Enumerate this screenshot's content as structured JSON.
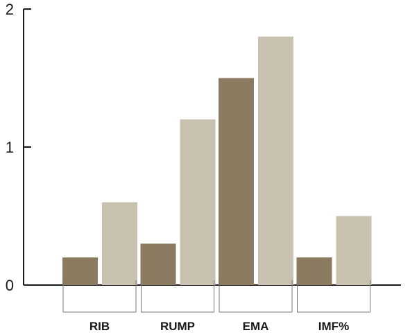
{
  "chart_data": {
    "type": "bar",
    "categories": [
      "RIB",
      "RUMP",
      "EMA",
      "IMF%"
    ],
    "series": [
      {
        "values": [
          0.2,
          0.3,
          1.5,
          0.2
        ]
      },
      {
        "values": [
          0.6,
          1.2,
          1.8,
          0.5
        ]
      }
    ],
    "colors": [
      "#8b7b61",
      "#c9c1af"
    ],
    "axis_color": "#1a1a1a",
    "bracket_color": "#777777",
    "ylim": [
      0,
      2
    ],
    "yticks": [
      0,
      1,
      2
    ],
    "ytick_labels": [
      "0",
      "1",
      "2"
    ],
    "title": "",
    "xlabel": "",
    "ylabel": "",
    "grid": false,
    "legend": "none"
  }
}
